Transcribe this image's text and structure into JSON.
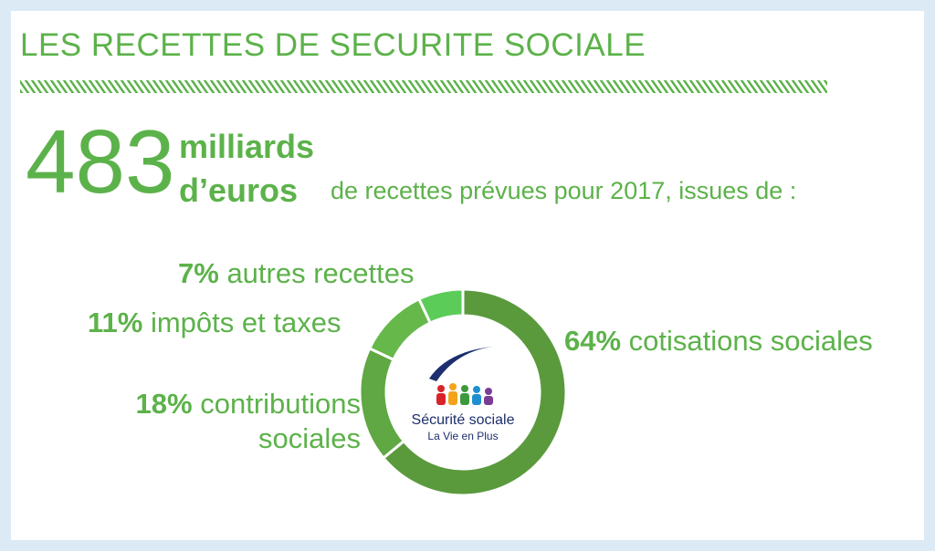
{
  "chart_data": {
    "type": "donut",
    "title": "LES RECETTES DE SECURITE SOCIALE",
    "total": 483,
    "total_unit": [
      "milliards",
      "d’euros"
    ],
    "subtitle": "de recettes prévues pour 2017, issues de :",
    "categories": [
      "cotisations sociales",
      "contributions sociales",
      "impôts et taxes",
      "autres recettes"
    ],
    "values": [
      64,
      18,
      11,
      7
    ],
    "value_labels": [
      "64%",
      "18%",
      "11%",
      "7%"
    ],
    "colors": [
      "#5a9a3d",
      "#5fa843",
      "#66b84b",
      "#5ccc58"
    ]
  },
  "logo": {
    "name": "Sécurité sociale",
    "tagline": "La Vie en Plus"
  }
}
